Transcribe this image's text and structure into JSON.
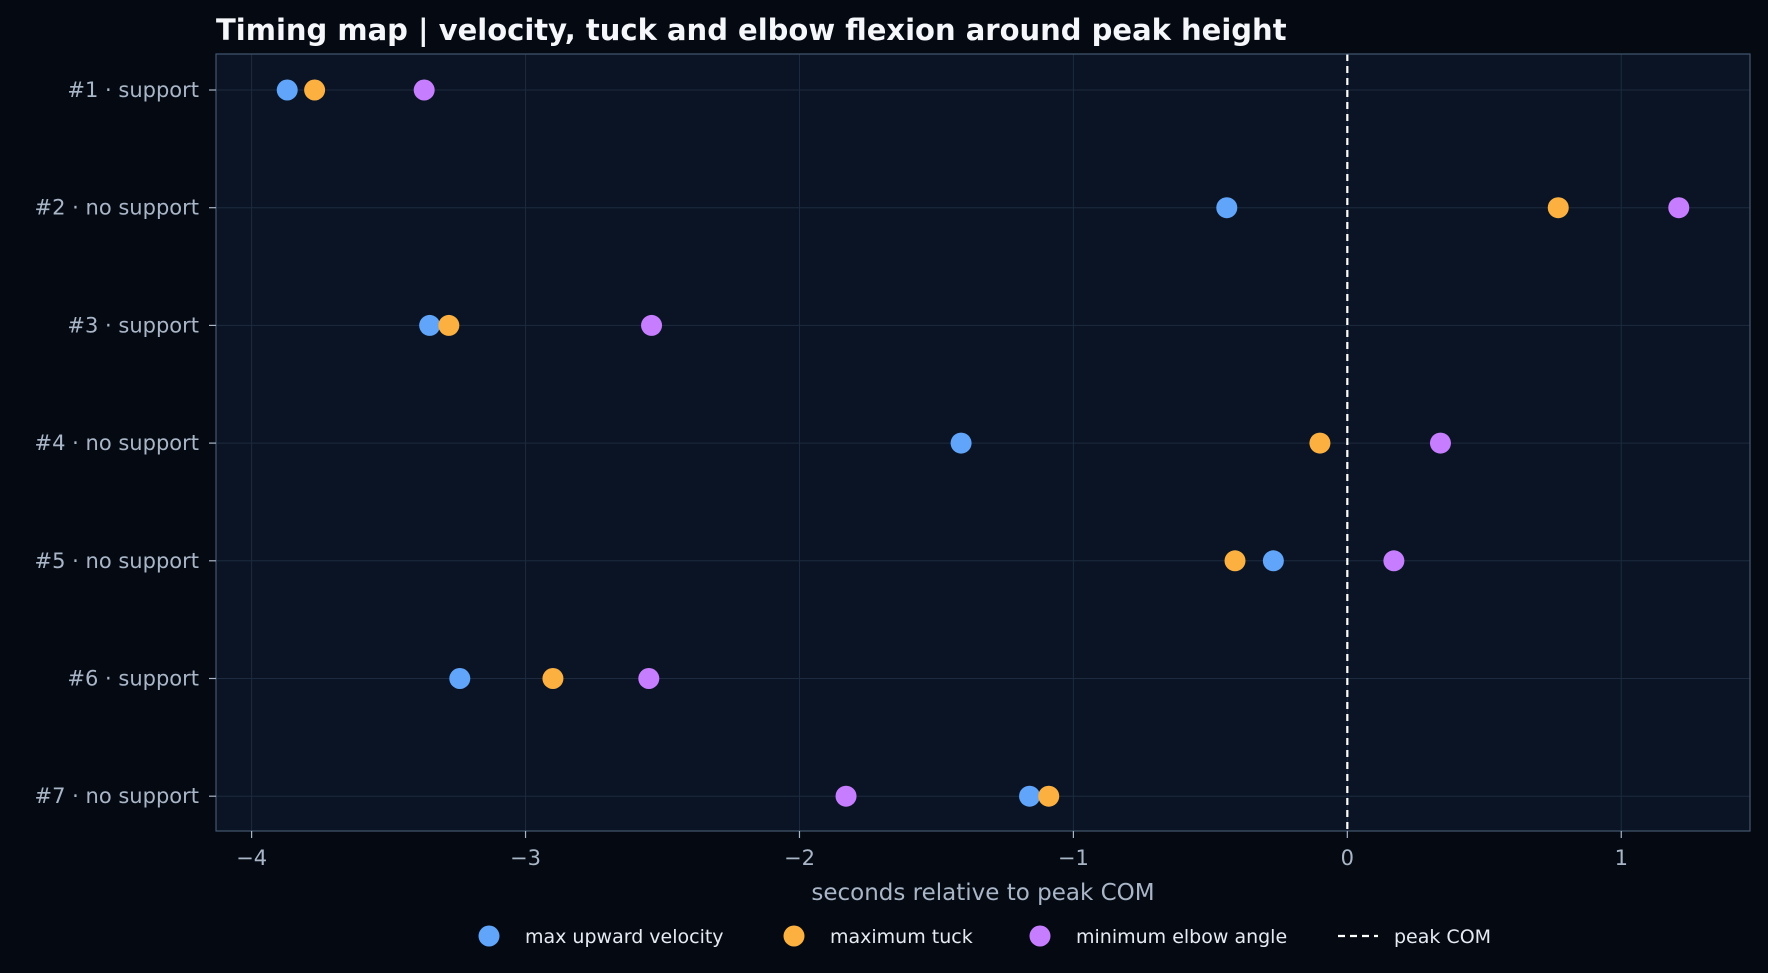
{
  "chart_data": {
    "type": "scatter",
    "title": "Timing map | velocity, tuck and elbow flexion around peak height",
    "xlabel": "seconds relative to peak COM",
    "ylabel": "",
    "xlim": [
      -4.13,
      1.47
    ],
    "x_ticks": [
      -4,
      -3,
      -2,
      -1,
      0,
      1
    ],
    "x_tick_labels": [
      "−4",
      "−3",
      "−2",
      "−1",
      "0",
      "1"
    ],
    "categories": [
      "#1 · support",
      "#2 · no support",
      "#3 · support",
      "#4 · no support",
      "#5 · no support",
      "#6 · support",
      "#7 · no support"
    ],
    "grid": true,
    "legend_position": "bottom-center",
    "series": [
      {
        "name": "max upward velocity",
        "color": "#60a5fa",
        "values": [
          -3.87,
          -0.44,
          -3.35,
          -1.41,
          -0.27,
          -3.24,
          -1.16
        ]
      },
      {
        "name": "maximum tuck",
        "color": "#fbb040",
        "values": [
          -3.77,
          0.77,
          -3.28,
          -0.1,
          -0.41,
          -2.9,
          -1.09
        ]
      },
      {
        "name": "minimum elbow angle",
        "color": "#c77dff",
        "values": [
          -3.37,
          1.21,
          -2.54,
          0.34,
          0.17,
          -2.55,
          -1.83
        ]
      }
    ],
    "reference_lines": [
      {
        "name": "peak COM",
        "x": 0,
        "style": "dashed",
        "color": "#ffffff"
      }
    ]
  },
  "colors": {
    "page_background": "#050a12",
    "plot_background": "#0b1425",
    "grid": "#1c2b3f",
    "frame": "#42566f"
  }
}
